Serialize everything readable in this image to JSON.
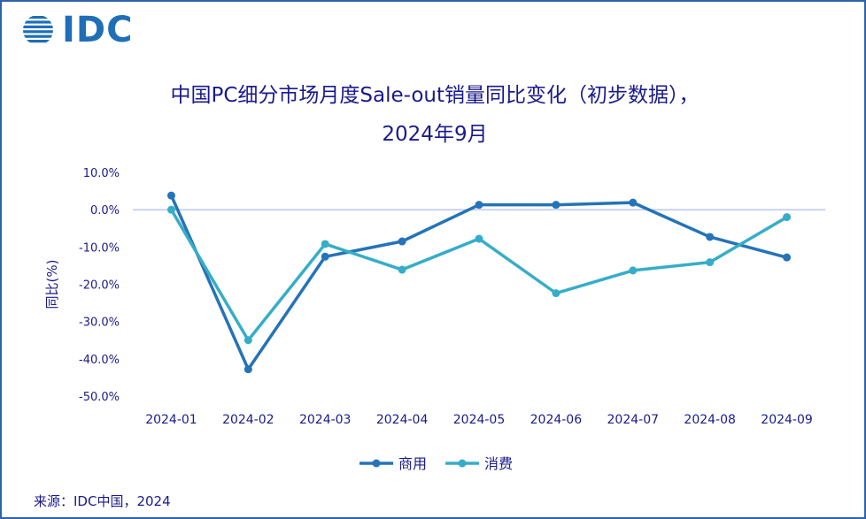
{
  "logo": {
    "text": "IDC",
    "icon": "idc-globe-icon"
  },
  "chart_data": {
    "type": "line",
    "title_line1": "中国PC细分市场月度Sale-out销量同比变化（初步数据），",
    "title_line2": "2024年9月",
    "ylabel": "同比(%)",
    "xlabel": "",
    "categories": [
      "2024-01",
      "2024-02",
      "2024-03",
      "2024-04",
      "2024-05",
      "2024-06",
      "2024-07",
      "2024-08",
      "2024-09"
    ],
    "yticks": [
      "10.0%",
      "0.0%",
      "-10.0%",
      "-20.0%",
      "-30.0%",
      "-40.0%",
      "-50.0%"
    ],
    "ylim": [
      -50,
      10
    ],
    "grid": false,
    "legend_position": "bottom",
    "series": [
      {
        "name": "商用",
        "color": "#2573b8",
        "values": [
          3.8,
          -42.8,
          -12.6,
          -8.5,
          1.3,
          1.3,
          1.9,
          -7.3,
          -12.8
        ]
      },
      {
        "name": "消费",
        "color": "#36adc8",
        "values": [
          0.0,
          -35.0,
          -9.2,
          -16.1,
          -7.8,
          -22.4,
          -16.3,
          -14.1,
          -2.0
        ]
      }
    ]
  },
  "source": "来源：IDC中国，2024"
}
